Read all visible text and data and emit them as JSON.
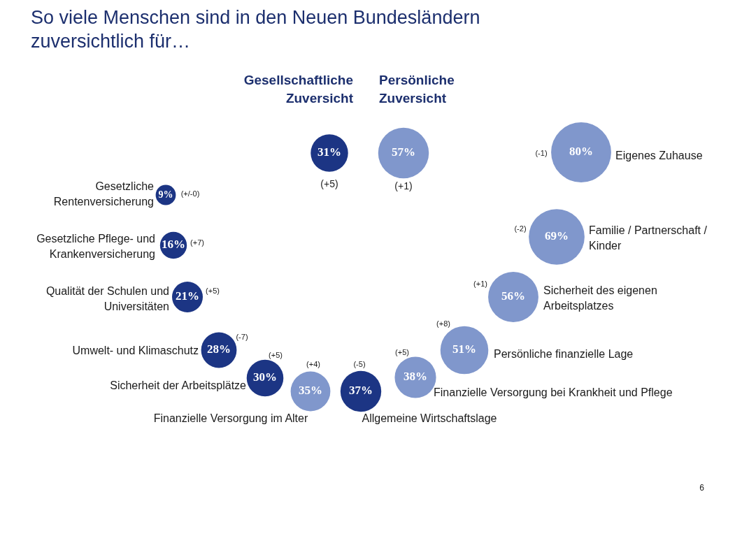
{
  "chart_data": {
    "type": "other",
    "title": "So viele Menschen sind in den Neuen Bundesländern zuversichtlich für…",
    "categories": [
      "Gesellschaftliche Zuversicht",
      "Persönliche Zuversicht",
      "Gesetzliche Rentenversicherung",
      "Gesetzliche Pflege- und Krankenversicherung",
      "Qualität der Schulen und Universitäten",
      "Umwelt- und Klimaschutz",
      "Sicherheit der Arbeitsplätze",
      "Finanzielle Versorgung im Alter",
      "Allgemeine Wirtschaftslage",
      "Finanzielle Versorgung bei Krankheit und Pflege",
      "Persönliche finanzielle Lage",
      "Sicherheit des eigenen Arbeitsplatzes",
      "Familie / Partnerschaft / Kinder",
      "Eigenes Zuhause"
    ],
    "values": [
      31,
      57,
      9,
      16,
      21,
      28,
      30,
      35,
      37,
      38,
      51,
      56,
      69,
      80
    ],
    "value_labels": [
      "31%",
      "57%",
      "9%",
      "16%",
      "21%",
      "28%",
      "30%",
      "35%",
      "37%",
      "38%",
      "51%",
      "56%",
      "69%",
      "80%"
    ],
    "colors": [
      "#1c3584",
      "#8097cc",
      "#1c3584",
      "#1c3584",
      "#1c3584",
      "#1c3584",
      "#1c3584",
      "#8097cc",
      "#1c3584",
      "#8097cc",
      "#8097cc",
      "#8097cc",
      "#8097cc",
      "#8097cc"
    ],
    "annotations": [
      {
        "text": "(+5)",
        "x": "Gesellschaftliche Zuversicht"
      },
      {
        "text": "(+1)",
        "x": "Persönliche Zuversicht"
      },
      {
        "text": "(+/-0)",
        "x": "Gesetzliche Rentenversicherung"
      },
      {
        "text": "(+7)",
        "x": "Gesetzliche Pflege- und Krankenversicherung"
      },
      {
        "text": "(+5)",
        "x": "Qualität der Schulen und Universitäten"
      },
      {
        "text": "(-7)",
        "x": "Umwelt- und Klimaschutz"
      },
      {
        "text": "(+5)",
        "x": "Sicherheit der Arbeitsplätze"
      },
      {
        "text": "(+4)",
        "x": "Finanzielle Versorgung im Alter"
      },
      {
        "text": "(-5)",
        "x": "Allgemeine Wirtschaftslage"
      },
      {
        "text": "(+5)",
        "x": "Finanzielle Versorgung bei Krankheit und Pflege"
      },
      {
        "text": "(+8)",
        "x": "Persönliche finanzielle Lage"
      },
      {
        "text": "(+1)",
        "x": "Sicherheit des eigenen Arbeitsplatzes"
      },
      {
        "text": "(-2)",
        "x": "Familie / Partnerschaft / Kinder"
      },
      {
        "text": "(-1)",
        "x": "Eigenes Zuhause"
      },
      "6"
    ],
    "legend": false
  }
}
